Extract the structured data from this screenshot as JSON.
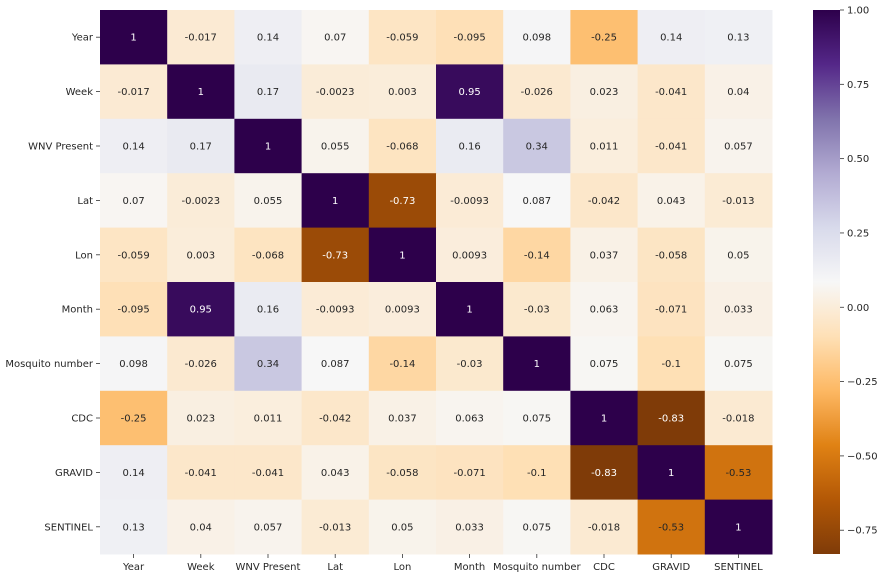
{
  "chart_data": {
    "type": "heatmap",
    "title": "",
    "xlabel": "",
    "ylabel": "",
    "x_labels": [
      "Year",
      "Week",
      "WNV Present",
      "Lat",
      "Lon",
      "Month",
      "Mosquito number",
      "CDC",
      "GRAVID",
      "SENTINEL"
    ],
    "y_labels": [
      "Year",
      "Week",
      "WNV Present",
      "Lat",
      "Lon",
      "Month",
      "Mosquito number",
      "CDC",
      "GRAVID",
      "SENTINEL"
    ],
    "values": [
      [
        1,
        -0.017,
        0.14,
        0.07,
        -0.059,
        -0.095,
        0.098,
        -0.25,
        0.14,
        0.13
      ],
      [
        -0.017,
        1,
        0.17,
        -0.0023,
        0.003,
        0.95,
        -0.026,
        0.023,
        -0.041,
        0.04
      ],
      [
        0.14,
        0.17,
        1,
        0.055,
        -0.068,
        0.16,
        0.34,
        0.011,
        -0.041,
        0.057
      ],
      [
        0.07,
        -0.0023,
        0.055,
        1,
        -0.73,
        -0.0093,
        0.087,
        -0.042,
        0.043,
        -0.013
      ],
      [
        -0.059,
        0.003,
        -0.068,
        -0.73,
        1,
        0.0093,
        -0.14,
        0.037,
        -0.058,
        0.05
      ],
      [
        -0.095,
        0.95,
        0.16,
        -0.0093,
        0.0093,
        1,
        -0.03,
        0.063,
        -0.071,
        0.033
      ],
      [
        0.098,
        -0.026,
        0.34,
        0.087,
        -0.14,
        -0.03,
        1,
        0.075,
        -0.1,
        0.075
      ],
      [
        -0.25,
        0.023,
        0.011,
        -0.042,
        0.037,
        0.063,
        0.075,
        1,
        -0.83,
        -0.018
      ],
      [
        0.14,
        -0.041,
        -0.041,
        0.043,
        -0.058,
        -0.071,
        -0.1,
        -0.83,
        1,
        -0.53
      ],
      [
        0.13,
        0.04,
        0.057,
        -0.013,
        0.05,
        0.033,
        0.075,
        -0.018,
        -0.53,
        1
      ]
    ],
    "colormap": "PuOr",
    "value_range": [
      -0.83,
      1
    ],
    "colorbar_ticks": [
      "1.00",
      "0.75",
      "0.50",
      "0.25",
      "0.00",
      "−0.25",
      "−0.50",
      "−0.75"
    ],
    "colorbar_tick_values": [
      1.0,
      0.75,
      0.5,
      0.25,
      0.0,
      -0.25,
      -0.5,
      -0.75
    ],
    "annotate": true,
    "grid": false,
    "legend": "colorbar-right"
  }
}
